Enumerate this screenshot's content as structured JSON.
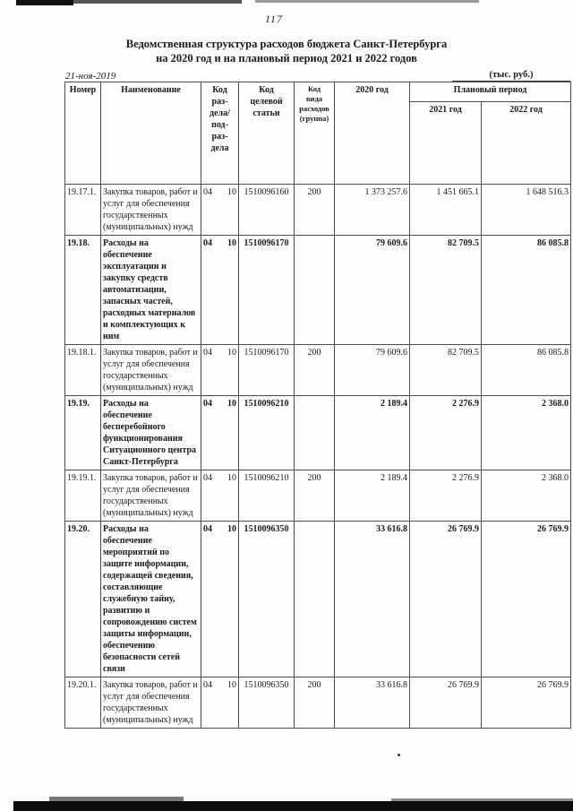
{
  "page": {
    "number": "117",
    "title_line1": "Ведомственная структура расходов бюджета Санкт-Петербурга",
    "title_line2": "на 2020 год и на плановый период 2021 и 2022 годов",
    "date": "21-ноя-2019",
    "units": "(тыс. руб.)"
  },
  "table": {
    "headers": {
      "number": "Номер",
      "name": "Наименование",
      "section": "Код\nраз-\nдела/\nпод-\nраз-\nдела",
      "target": "Код\nцелевой\nстатьи",
      "expense_type": "Код\nвида\nрасходов\n(группа)",
      "y2020": "2020 год",
      "plan_period": "Плановый период",
      "y2021": "2021 год",
      "y2022": "2022 год"
    },
    "rows": [
      {
        "num": "19.17.1.",
        "name": "Закупка товаров, работ и услуг для обеспечения государственных (муниципальных) нужд",
        "section_code": "04",
        "subsection_code": "10",
        "target_code": "1510096160",
        "expense_type": "200",
        "y2020": "1 373 257.6",
        "y2021": "1 451 665.1",
        "y2022": "1 648 516.3",
        "emphasis": false
      },
      {
        "num": "19.18.",
        "name": "Расходы на обеспечение эксплуатации и закупку средств автоматизации, запасных частей, расходных материалов и комплектующих к ним",
        "section_code": "04",
        "subsection_code": "10",
        "target_code": "1510096170",
        "expense_type": "",
        "y2020": "79 609.6",
        "y2021": "82 709.5",
        "y2022": "86 085.8",
        "emphasis": true
      },
      {
        "num": "19.18.1.",
        "name": "Закупка товаров, работ и услуг для обеспечения государственных (муниципальных) нужд",
        "section_code": "04",
        "subsection_code": "10",
        "target_code": "1510096170",
        "expense_type": "200",
        "y2020": "79 609.6",
        "y2021": "82 709.5",
        "y2022": "86 085.8",
        "emphasis": false
      },
      {
        "num": "19.19.",
        "name": "Расходы на обеспечение бесперебойного функционирования Ситуационного центра Санкт-Петербурга",
        "section_code": "04",
        "subsection_code": "10",
        "target_code": "1510096210",
        "expense_type": "",
        "y2020": "2 189.4",
        "y2021": "2 276.9",
        "y2022": "2 368.0",
        "emphasis": true
      },
      {
        "num": "19.19.1.",
        "name": "Закупка товаров, работ и услуг для обеспечения государственных (муниципальных) нужд",
        "section_code": "04",
        "subsection_code": "10",
        "target_code": "1510096210",
        "expense_type": "200",
        "y2020": "2 189.4",
        "y2021": "2 276.9",
        "y2022": "2 368.0",
        "emphasis": false
      },
      {
        "num": "19.20.",
        "name": "Расходы на обеспечение мероприятий по защите информации, содержащей сведения, составляющие служебную тайну, развитию и сопровождению систем защиты информации, обеспечению безопасности сетей связи",
        "section_code": "04",
        "subsection_code": "10",
        "target_code": "1510096350",
        "expense_type": "",
        "y2020": "33 616.8",
        "y2021": "26 769.9",
        "y2022": "26 769.9",
        "emphasis": true
      },
      {
        "num": "19.20.1.",
        "name": "Закупка товаров, работ и услуг для обеспечения государственных (муниципальных) нужд",
        "section_code": "04",
        "subsection_code": "10",
        "target_code": "1510096350",
        "expense_type": "200",
        "y2020": "33 616.8",
        "y2021": "26 769.9",
        "y2022": "26 769.9",
        "emphasis": false
      }
    ]
  }
}
